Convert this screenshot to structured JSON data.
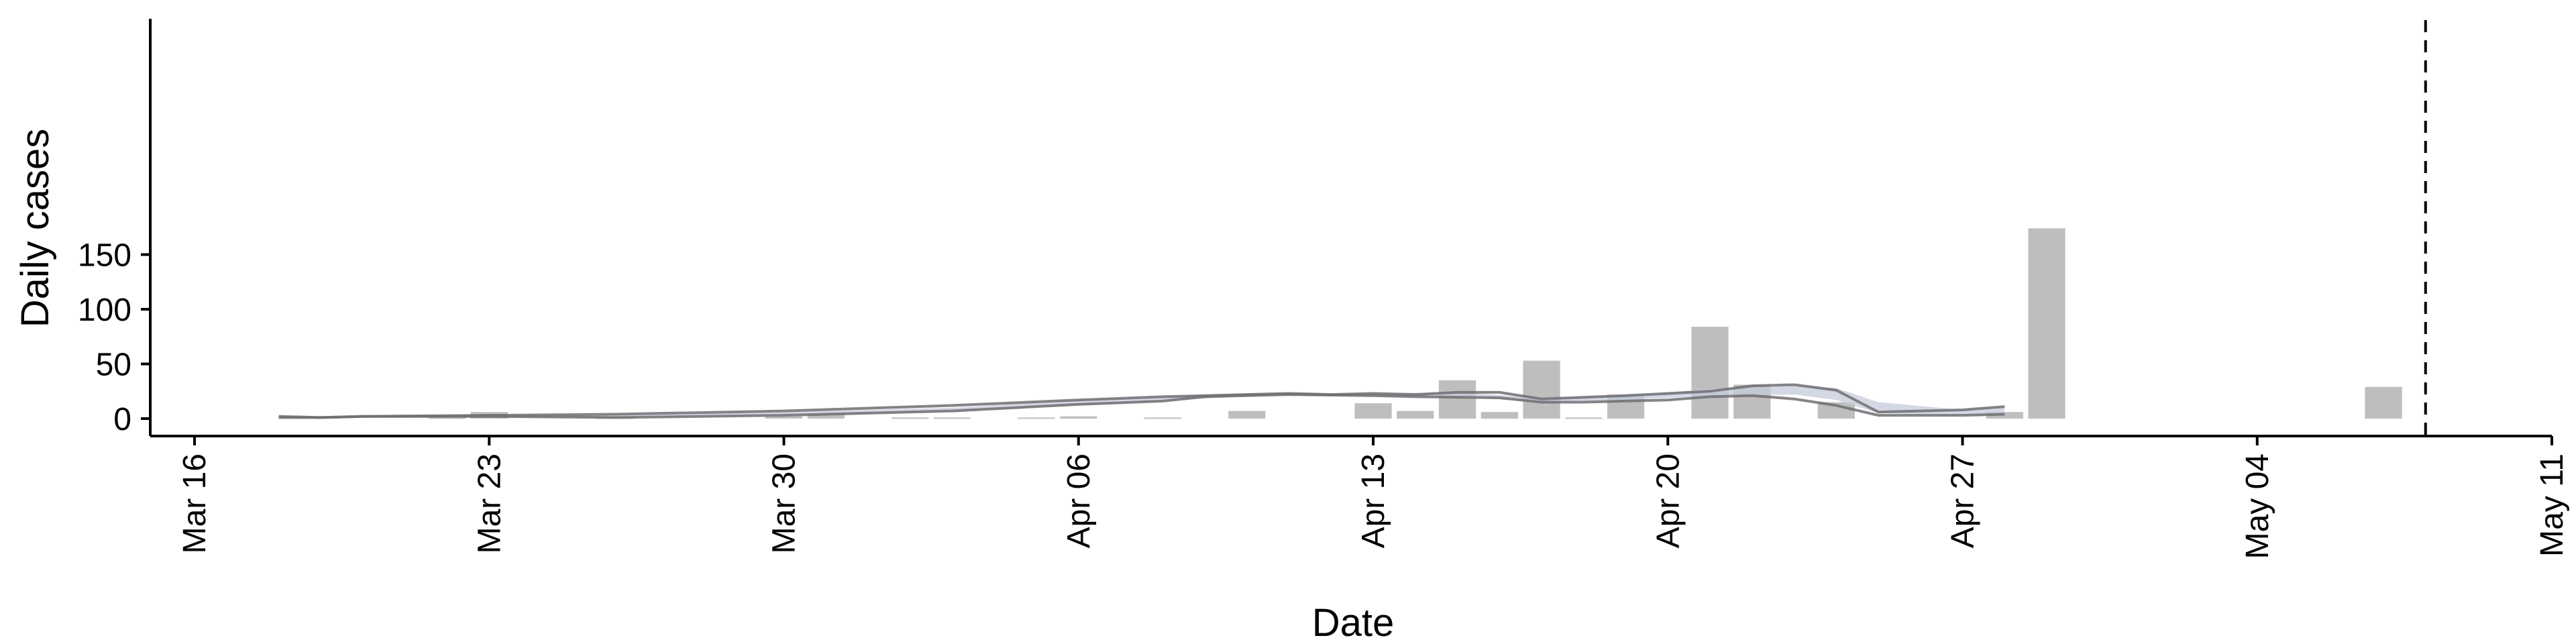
{
  "chart_data": {
    "type": "bar",
    "xlabel": "Date",
    "ylabel": "Daily cases",
    "x_ticks": [
      "Mar 16",
      "Mar 23",
      "Mar 30",
      "Apr 06",
      "Apr 13",
      "Apr 20",
      "Apr 27",
      "May 04",
      "May 11"
    ],
    "y_ticks": [
      0,
      50,
      100,
      150
    ],
    "xlim": [
      "2020-03-16",
      "2020-05-11"
    ],
    "ylim": [
      -8,
      182
    ],
    "grid": false,
    "colors": {
      "bars": "#bebebe",
      "band": "#c5cbdc",
      "lines": "#6e6e72",
      "vline": "#000000"
    },
    "bars": [
      {
        "date": "2020-03-22",
        "value": 1
      },
      {
        "date": "2020-03-23",
        "value": 6
      },
      {
        "date": "2020-03-26",
        "value": 1
      },
      {
        "date": "2020-03-30",
        "value": 2
      },
      {
        "date": "2020-03-31",
        "value": 5
      },
      {
        "date": "2020-04-02",
        "value": 1
      },
      {
        "date": "2020-04-03",
        "value": 1
      },
      {
        "date": "2020-04-05",
        "value": 1
      },
      {
        "date": "2020-04-06",
        "value": 2
      },
      {
        "date": "2020-04-08",
        "value": 1
      },
      {
        "date": "2020-04-10",
        "value": 7
      },
      {
        "date": "2020-04-13",
        "value": 14
      },
      {
        "date": "2020-04-14",
        "value": 7
      },
      {
        "date": "2020-04-15",
        "value": 35
      },
      {
        "date": "2020-04-16",
        "value": 6
      },
      {
        "date": "2020-04-17",
        "value": 53
      },
      {
        "date": "2020-04-18",
        "value": 1
      },
      {
        "date": "2020-04-19",
        "value": 22
      },
      {
        "date": "2020-04-21",
        "value": 84
      },
      {
        "date": "2020-04-22",
        "value": 31
      },
      {
        "date": "2020-04-24",
        "value": 15
      },
      {
        "date": "2020-04-28",
        "value": 6
      },
      {
        "date": "2020-04-29",
        "value": 174
      },
      {
        "date": "2020-05-07",
        "value": 29
      }
    ],
    "band": [
      {
        "date": "2020-03-18",
        "lo": 1,
        "hi": 2
      },
      {
        "date": "2020-03-19",
        "lo": 0,
        "hi": 1
      },
      {
        "date": "2020-03-20",
        "lo": 1,
        "hi": 2
      },
      {
        "date": "2020-03-23",
        "lo": 1,
        "hi": 3
      },
      {
        "date": "2020-03-26",
        "lo": 1,
        "hi": 3
      },
      {
        "date": "2020-03-30",
        "lo": 3,
        "hi": 6
      },
      {
        "date": "2020-04-03",
        "lo": 6,
        "hi": 10
      },
      {
        "date": "2020-04-06",
        "lo": 12,
        "hi": 17
      },
      {
        "date": "2020-04-08",
        "lo": 16,
        "hi": 20
      },
      {
        "date": "2020-04-10",
        "lo": 21,
        "hi": 23
      },
      {
        "date": "2020-04-13",
        "lo": 21,
        "hi": 23
      },
      {
        "date": "2020-04-15",
        "lo": 20,
        "hi": 24
      },
      {
        "date": "2020-04-17",
        "lo": 15,
        "hi": 19
      },
      {
        "date": "2020-04-19",
        "lo": 17,
        "hi": 21
      },
      {
        "date": "2020-04-21",
        "lo": 21,
        "hi": 27
      },
      {
        "date": "2020-04-23",
        "lo": 22,
        "hi": 30
      },
      {
        "date": "2020-04-24",
        "lo": 17,
        "hi": 28
      },
      {
        "date": "2020-04-25",
        "lo": 5,
        "hi": 15
      },
      {
        "date": "2020-04-27",
        "lo": 3,
        "hi": 8
      },
      {
        "date": "2020-04-28",
        "lo": 3,
        "hi": 10
      }
    ],
    "lines": [
      {
        "points": [
          {
            "date": "2020-03-18",
            "value": 2
          },
          {
            "date": "2020-03-19",
            "value": 1
          },
          {
            "date": "2020-03-20",
            "value": 2
          },
          {
            "date": "2020-03-23",
            "value": 2
          },
          {
            "date": "2020-03-26",
            "value": 1
          },
          {
            "date": "2020-03-30",
            "value": 3
          },
          {
            "date": "2020-04-03",
            "value": 7
          },
          {
            "date": "2020-04-06",
            "value": 13
          },
          {
            "date": "2020-04-08",
            "value": 16
          },
          {
            "date": "2020-04-09",
            "value": 20
          },
          {
            "date": "2020-04-11",
            "value": 22
          },
          {
            "date": "2020-04-13",
            "value": 21
          },
          {
            "date": "2020-04-14",
            "value": 20
          },
          {
            "date": "2020-04-16",
            "value": 19
          },
          {
            "date": "2020-04-17",
            "value": 15
          },
          {
            "date": "2020-04-18",
            "value": 15
          },
          {
            "date": "2020-04-20",
            "value": 17
          },
          {
            "date": "2020-04-21",
            "value": 20
          },
          {
            "date": "2020-04-22",
            "value": 21
          },
          {
            "date": "2020-04-23",
            "value": 18
          },
          {
            "date": "2020-04-24",
            "value": 12
          },
          {
            "date": "2020-04-25",
            "value": 3
          },
          {
            "date": "2020-04-27",
            "value": 3
          },
          {
            "date": "2020-04-28",
            "value": 4
          }
        ]
      },
      {
        "points": [
          {
            "date": "2020-03-18",
            "value": 1
          },
          {
            "date": "2020-03-19",
            "value": 1
          },
          {
            "date": "2020-03-20",
            "value": 2
          },
          {
            "date": "2020-03-23",
            "value": 3
          },
          {
            "date": "2020-03-26",
            "value": 4
          },
          {
            "date": "2020-03-30",
            "value": 7
          },
          {
            "date": "2020-04-03",
            "value": 12
          },
          {
            "date": "2020-04-06",
            "value": 17
          },
          {
            "date": "2020-04-08",
            "value": 20
          },
          {
            "date": "2020-04-10",
            "value": 22
          },
          {
            "date": "2020-04-11",
            "value": 23
          },
          {
            "date": "2020-04-12",
            "value": 22
          },
          {
            "date": "2020-04-13",
            "value": 23
          },
          {
            "date": "2020-04-14",
            "value": 22
          },
          {
            "date": "2020-04-15",
            "value": 24
          },
          {
            "date": "2020-04-16",
            "value": 24
          },
          {
            "date": "2020-04-17",
            "value": 18
          },
          {
            "date": "2020-04-19",
            "value": 21
          },
          {
            "date": "2020-04-21",
            "value": 25
          },
          {
            "date": "2020-04-22",
            "value": 30
          },
          {
            "date": "2020-04-23",
            "value": 31
          },
          {
            "date": "2020-04-24",
            "value": 26
          },
          {
            "date": "2020-04-25",
            "value": 6
          },
          {
            "date": "2020-04-27",
            "value": 8
          },
          {
            "date": "2020-04-28",
            "value": 11
          }
        ]
      }
    ],
    "vline": {
      "date": "2020-05-08",
      "style": "dashed"
    }
  }
}
